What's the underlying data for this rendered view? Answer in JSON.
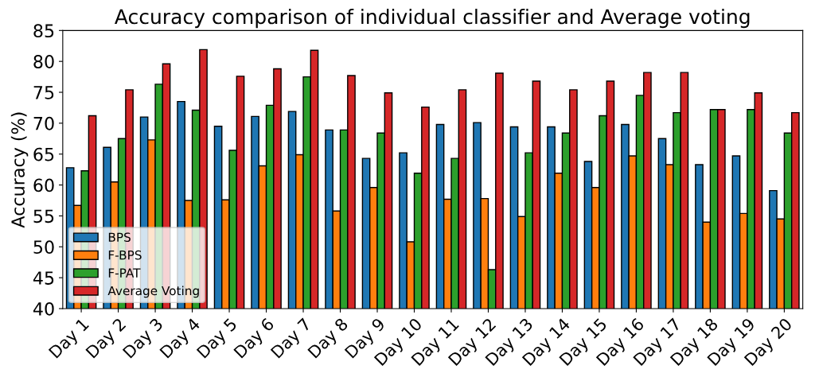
{
  "chart_data": {
    "type": "bar",
    "title": "Accuracy comparison of individual classifier and Average voting",
    "ylabel": "Accuracy (%)",
    "categories": [
      "Day 1",
      "Day 2",
      "Day 3",
      "Day 4",
      "Day 5",
      "Day 6",
      "Day 7",
      "Day 8",
      "Day 9",
      "Day 10",
      "Day 11",
      "Day 12",
      "Day 13",
      "Day 14",
      "Day 15",
      "Day 16",
      "Day 17",
      "Day 18",
      "Day 19",
      "Day 20"
    ],
    "series": [
      {
        "name": "BPS",
        "color": "#1f77b4",
        "values": [
          62.8,
          66.1,
          71.0,
          73.5,
          69.5,
          71.1,
          71.9,
          68.9,
          64.3,
          65.2,
          69.8,
          70.1,
          69.4,
          69.4,
          63.8,
          69.8,
          67.5,
          63.3,
          64.7,
          59.1
        ]
      },
      {
        "name": "F-BPS",
        "color": "#ff7f0e",
        "values": [
          56.7,
          60.5,
          67.3,
          57.5,
          57.6,
          63.1,
          64.9,
          55.8,
          59.6,
          50.8,
          57.7,
          57.8,
          54.9,
          61.9,
          59.6,
          64.7,
          63.3,
          54.0,
          55.4,
          54.5
        ]
      },
      {
        "name": "F-PAT",
        "color": "#2ca02c",
        "values": [
          62.3,
          67.5,
          76.3,
          72.1,
          65.6,
          72.9,
          77.5,
          68.9,
          68.4,
          61.9,
          64.3,
          46.3,
          65.2,
          68.4,
          71.2,
          74.5,
          71.7,
          72.2,
          72.2,
          68.4
        ]
      },
      {
        "name": "Average Voting",
        "color": "#d62728",
        "values": [
          71.2,
          75.4,
          79.6,
          81.9,
          77.6,
          78.8,
          81.8,
          77.7,
          74.9,
          72.6,
          75.4,
          78.1,
          76.8,
          75.4,
          76.8,
          78.2,
          78.2,
          72.2,
          74.9,
          71.7
        ]
      }
    ],
    "ylim": [
      40,
      85
    ],
    "yticks": [
      40,
      45,
      50,
      55,
      60,
      65,
      70,
      75,
      80,
      85
    ],
    "grid": false,
    "legend": "bottom left"
  }
}
